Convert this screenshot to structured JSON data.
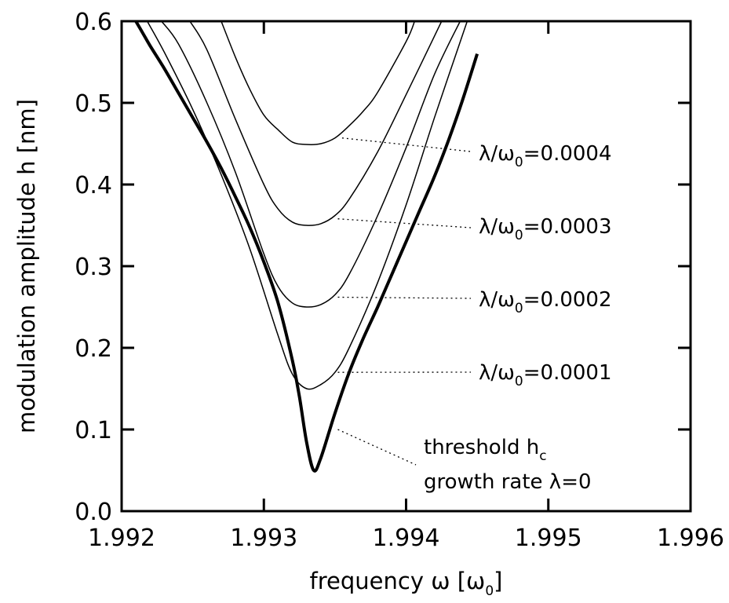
{
  "chart_data": {
    "type": "line",
    "xlabel": {
      "main": "frequency ω [ω",
      "sub": "0",
      "end": "]"
    },
    "ylabel": "modulation amplitude h [nm]",
    "xlim": [
      1.992,
      1.996
    ],
    "ylim": [
      0.0,
      0.6
    ],
    "x_ticks": [
      "1.992",
      "1.993",
      "1.994",
      "1.995",
      "1.996"
    ],
    "y_ticks": [
      "0.0",
      "0.1",
      "0.2",
      "0.3",
      "0.4",
      "0.5",
      "0.6"
    ],
    "grid": false,
    "series": [
      {
        "x": [
          1.9921,
          1.99215,
          1.9922,
          1.9923,
          1.9924,
          1.9925,
          1.9926,
          1.9927,
          1.9928,
          1.9929,
          1.993,
          1.9931,
          1.9932,
          1.99325,
          1.9933,
          1.99335,
          1.9934,
          1.9935,
          1.9936,
          1.9937,
          1.9938,
          1.9939,
          1.994,
          1.9941,
          1.9942,
          1.9943,
          1.9944,
          1.9945
        ],
        "values": [
          0.6,
          0.585,
          0.57,
          0.542,
          0.512,
          0.482,
          0.452,
          0.42,
          0.385,
          0.348,
          0.305,
          0.255,
          0.185,
          0.14,
          0.085,
          0.05,
          0.065,
          0.12,
          0.17,
          0.212,
          0.25,
          0.29,
          0.33,
          0.37,
          0.41,
          0.455,
          0.505,
          0.56
        ]
      },
      {
        "x": [
          1.99218,
          1.9923,
          1.9925,
          1.9927,
          1.9929,
          1.9931,
          1.9932,
          1.9933,
          1.9934,
          1.9935,
          1.9936,
          1.9938,
          1.994,
          1.9942,
          1.99443
        ],
        "values": [
          0.6,
          0.562,
          0.492,
          0.412,
          0.322,
          0.215,
          0.168,
          0.15,
          0.155,
          0.17,
          0.2,
          0.28,
          0.375,
          0.482,
          0.6
        ]
      },
      {
        "x": [
          1.99228,
          1.9924,
          1.9926,
          1.9928,
          1.993,
          1.9931,
          1.9932,
          1.9933,
          1.9934,
          1.9935,
          1.9936,
          1.9938,
          1.994,
          1.9942,
          1.99438
        ],
        "values": [
          0.6,
          0.572,
          0.5,
          0.415,
          0.315,
          0.275,
          0.255,
          0.25,
          0.253,
          0.265,
          0.29,
          0.362,
          0.445,
          0.535,
          0.6
        ]
      },
      {
        "x": [
          1.99248,
          1.9926,
          1.9928,
          1.993,
          1.9931,
          1.9932,
          1.9933,
          1.9934,
          1.9935,
          1.9936,
          1.9938,
          1.994,
          1.99425
        ],
        "values": [
          0.6,
          0.565,
          0.48,
          0.4,
          0.37,
          0.354,
          0.35,
          0.352,
          0.362,
          0.382,
          0.44,
          0.51,
          0.6
        ]
      },
      {
        "x": [
          1.9927,
          1.9928,
          1.9929,
          1.993,
          1.9931,
          1.9932,
          1.9933,
          1.9934,
          1.9935,
          1.9936,
          1.9937,
          1.9938,
          1.994,
          1.99406
        ],
        "values": [
          0.6,
          0.556,
          0.517,
          0.485,
          0.467,
          0.452,
          0.449,
          0.45,
          0.457,
          0.472,
          0.49,
          0.513,
          0.575,
          0.6
        ]
      }
    ],
    "annotations": [
      {
        "text": "λ/ω",
        "sub": "0",
        "rest": "=0.0004",
        "target": [
          1.99355,
          0.457
        ]
      },
      {
        "text": "λ/ω",
        "sub": "0",
        "rest": "=0.0003",
        "target": [
          1.99352,
          0.358
        ]
      },
      {
        "text": "λ/ω",
        "sub": "0",
        "rest": "=0.0002",
        "target": [
          1.99352,
          0.262
        ]
      },
      {
        "text": "λ/ω",
        "sub": "0",
        "rest": "=0.0001",
        "target": [
          1.99352,
          0.17
        ]
      },
      {
        "text": "threshold h",
        "sub": "c",
        "line2": "growth rate λ=0",
        "target": [
          1.99352,
          0.1
        ]
      }
    ]
  }
}
